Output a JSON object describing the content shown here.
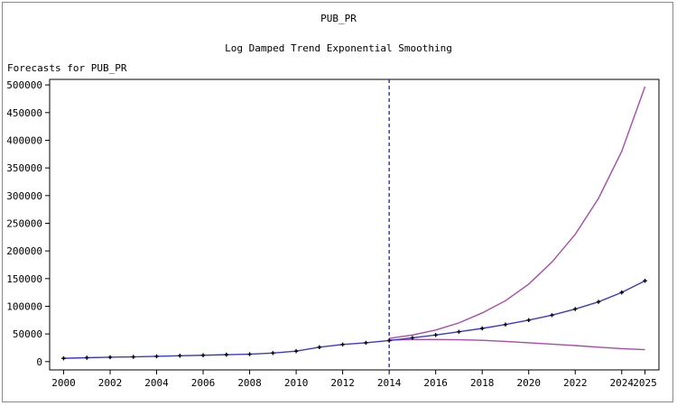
{
  "chart_data": {
    "type": "line",
    "title": "PUB_PR",
    "subtitle": "Log Damped Trend Exponential Smoothing",
    "ylabel": "Forecasts for PUB_PR",
    "xlabel": "",
    "xlim": [
      1999.4,
      2025.6
    ],
    "ylim": [
      -15000,
      510000
    ],
    "x_ticks": [
      2000,
      2002,
      2004,
      2006,
      2008,
      2010,
      2012,
      2014,
      2016,
      2018,
      2020,
      2022,
      2024,
      2025
    ],
    "x_tick_labels": [
      "2000",
      "2002",
      "2004",
      "2006",
      "2008",
      "2010",
      "2012",
      "2014",
      "2016",
      "2018",
      "2020",
      "2022",
      "2024",
      "2025"
    ],
    "y_ticks": [
      0,
      50000,
      100000,
      150000,
      200000,
      250000,
      300000,
      350000,
      400000,
      450000,
      500000
    ],
    "y_tick_labels": [
      "0",
      "50000",
      "100000",
      "150000",
      "200000",
      "250000",
      "300000",
      "350000",
      "400000",
      "450000",
      "500000"
    ],
    "forecast_start": 2014,
    "grid": false,
    "series": [
      {
        "role": "forecast",
        "color": "#3a3ad0",
        "markers": true,
        "points": [
          [
            2000,
            6000
          ],
          [
            2001,
            7000
          ],
          [
            2002,
            8000
          ],
          [
            2003,
            8500
          ],
          [
            2004,
            9500
          ],
          [
            2005,
            10500
          ],
          [
            2006,
            11500
          ],
          [
            2007,
            12500
          ],
          [
            2008,
            13500
          ],
          [
            2009,
            15500
          ],
          [
            2010,
            19000
          ],
          [
            2011,
            26000
          ],
          [
            2012,
            31000
          ],
          [
            2013,
            34000
          ],
          [
            2014,
            38000
          ],
          [
            2015,
            43000
          ],
          [
            2016,
            48000
          ],
          [
            2017,
            54000
          ],
          [
            2018,
            60000
          ],
          [
            2019,
            67000
          ],
          [
            2020,
            75000
          ],
          [
            2021,
            84000
          ],
          [
            2022,
            95000
          ],
          [
            2023,
            108000
          ],
          [
            2024,
            125000
          ],
          [
            2025,
            146000
          ]
        ]
      },
      {
        "role": "upper",
        "color": "#a94ba9",
        "markers": false,
        "points": [
          [
            2014,
            42000
          ],
          [
            2015,
            48000
          ],
          [
            2016,
            57000
          ],
          [
            2017,
            70000
          ],
          [
            2018,
            88000
          ],
          [
            2019,
            110000
          ],
          [
            2020,
            140000
          ],
          [
            2021,
            180000
          ],
          [
            2022,
            230000
          ],
          [
            2023,
            295000
          ],
          [
            2024,
            380000
          ],
          [
            2025,
            497000
          ]
        ]
      },
      {
        "role": "lower",
        "color": "#a94ba9",
        "markers": false,
        "points": [
          [
            2014,
            39000
          ],
          [
            2015,
            40000
          ],
          [
            2016,
            40000
          ],
          [
            2017,
            39500
          ],
          [
            2018,
            38500
          ],
          [
            2019,
            36500
          ],
          [
            2020,
            34000
          ],
          [
            2021,
            31500
          ],
          [
            2022,
            29000
          ],
          [
            2023,
            26000
          ],
          [
            2024,
            23500
          ],
          [
            2025,
            21500
          ]
        ]
      }
    ]
  }
}
